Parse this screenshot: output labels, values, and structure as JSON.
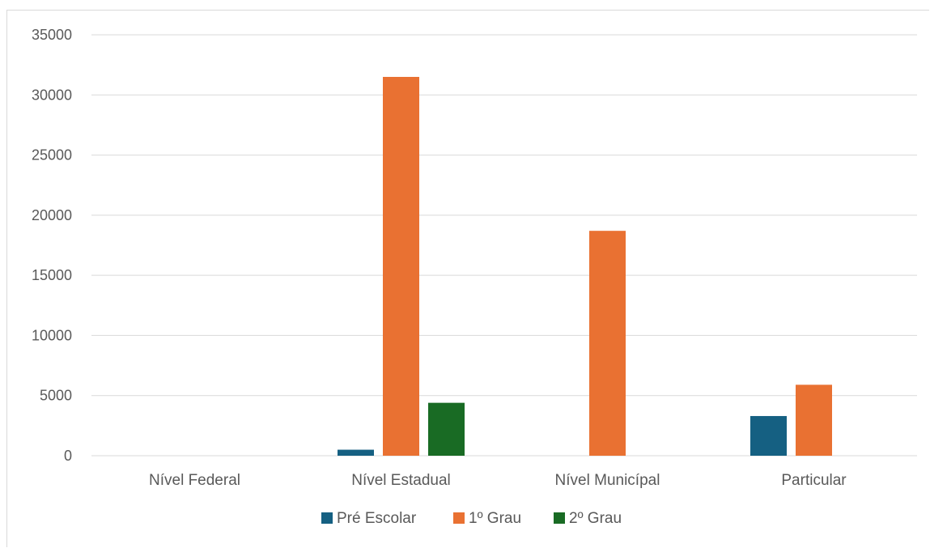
{
  "chart_data": {
    "type": "bar",
    "title": "",
    "xlabel": "",
    "ylabel": "",
    "categories": [
      "Nível Federal",
      "Nível Estadual",
      "Nível Municípal",
      "Particular"
    ],
    "series": [
      {
        "name": "Pré Escolar",
        "color": "#156082",
        "values": [
          0,
          500,
          0,
          3300
        ]
      },
      {
        "name": "1º Grau",
        "color": "#E97132",
        "values": [
          0,
          31500,
          18700,
          5900
        ]
      },
      {
        "name": "2º Grau",
        "color": "#196B24",
        "values": [
          0,
          4400,
          0,
          0
        ]
      }
    ],
    "yticks": [
      "0",
      "5000",
      "10000",
      "15000",
      "20000",
      "25000",
      "30000",
      "35000"
    ],
    "ylim": [
      0,
      35000
    ],
    "grid": true,
    "legend_position": "bottom"
  }
}
